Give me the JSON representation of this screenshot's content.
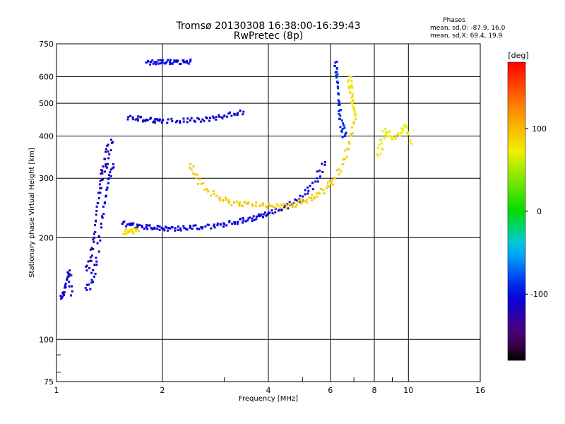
{
  "chart_data": {
    "type": "scatter",
    "title": "Tromsø 20130308 16:38:00-16:39:43",
    "subtitle": "RwPretec (8p)",
    "xlabel": "Frequency [MHz]",
    "ylabel": "Stationary phase Virtual Height [km]",
    "x_scale": "log",
    "y_scale": "log",
    "xlim": [
      1,
      16
    ],
    "ylim": [
      75,
      750
    ],
    "x_ticks": [
      1,
      2,
      4,
      6,
      8,
      10,
      16
    ],
    "x_tick_labels": [
      "1",
      "2",
      "4",
      "6",
      "8",
      "10",
      "16"
    ],
    "y_ticks": [
      75,
      100,
      200,
      300,
      400,
      500,
      600,
      750
    ],
    "y_tick_labels": [
      "75",
      "100",
      "200",
      "300",
      "400",
      "500",
      "600",
      "750"
    ],
    "grid": true,
    "phase_box": {
      "heading": "Phases",
      "line_o": "mean, sd,O: -87.9, 16.0",
      "line_x": "mean, sd,X: 69.4, 19.9"
    },
    "colorbar": {
      "label": "[deg]",
      "range": [
        -180,
        180
      ],
      "tick_values": [
        100,
        0,
        -100
      ],
      "tick_labels": [
        "100",
        "0",
        "-100"
      ]
    },
    "traces": [
      {
        "x": [
          1.03,
          1.05,
          1.07,
          1.09,
          1.1
        ],
        "y": [
          132,
          138,
          150,
          160,
          135
        ],
        "phase": -110
      },
      {
        "x": [
          1.22,
          1.25,
          1.28,
          1.3,
          1.33,
          1.35,
          1.38,
          1.4,
          1.43
        ],
        "y": [
          160,
          175,
          200,
          240,
          280,
          310,
          330,
          360,
          390
        ],
        "phase": -120
      },
      {
        "x": [
          1.22,
          1.26,
          1.3,
          1.34,
          1.38,
          1.41,
          1.45
        ],
        "y": [
          140,
          150,
          170,
          220,
          265,
          300,
          330
        ],
        "phase": -100
      },
      {
        "x": [
          1.55,
          1.62,
          1.7,
          1.8,
          1.9,
          2.0,
          2.1,
          2.25,
          2.4,
          2.6,
          2.8,
          3.0,
          3.2,
          3.4,
          3.6,
          3.8,
          4.0,
          4.3,
          4.6,
          4.9,
          5.2,
          5.5,
          5.8
        ],
        "y": [
          222,
          218,
          216,
          215,
          214,
          213,
          213,
          213,
          214,
          215,
          217,
          219,
          222,
          225,
          228,
          232,
          236,
          242,
          250,
          260,
          275,
          300,
          335
        ],
        "phase": -105
      },
      {
        "x": [
          1.6,
          1.7,
          1.8,
          1.9,
          2.0,
          2.2,
          2.4,
          2.6,
          2.8,
          3.0,
          3.2,
          3.4
        ],
        "y": [
          455,
          450,
          447,
          445,
          444,
          443,
          445,
          448,
          452,
          458,
          465,
          472
        ],
        "phase": -110
      },
      {
        "x": [
          2.4,
          2.5,
          2.7,
          2.9,
          3.1,
          3.3,
          3.5,
          3.8,
          4.1,
          4.4,
          4.7,
          5.0,
          5.3,
          5.6,
          5.9,
          6.2,
          6.5,
          6.8,
          7.0
        ],
        "y": [
          330,
          300,
          275,
          262,
          255,
          252,
          252,
          250,
          248,
          248,
          250,
          255,
          262,
          270,
          285,
          300,
          330,
          380,
          440
        ],
        "phase": 90
      },
      {
        "x": [
          1.55,
          1.6,
          1.65,
          1.7
        ],
        "y": [
          205,
          210,
          208,
          212
        ],
        "phase": 80
      },
      {
        "x": [
          1.8,
          1.9,
          2.0,
          2.1,
          2.2,
          2.3,
          2.4
        ],
        "y": [
          660,
          662,
          661,
          663,
          664,
          662,
          665
        ],
        "phase": -100
      },
      {
        "x": [
          6.2,
          6.25,
          6.3,
          6.35,
          6.4,
          6.5,
          6.6
        ],
        "y": [
          660,
          620,
          560,
          500,
          460,
          420,
          400
        ],
        "phase": -90
      },
      {
        "x": [
          6.8,
          6.85,
          6.9,
          7.0,
          7.1
        ],
        "y": [
          600,
          560,
          520,
          480,
          450
        ],
        "phase": 80
      },
      {
        "x": [
          8.2,
          8.4,
          8.6,
          9.0,
          9.5,
          9.8,
          10.2
        ],
        "y": [
          350,
          380,
          420,
          390,
          410,
          430,
          380
        ],
        "phase": 70
      }
    ]
  }
}
